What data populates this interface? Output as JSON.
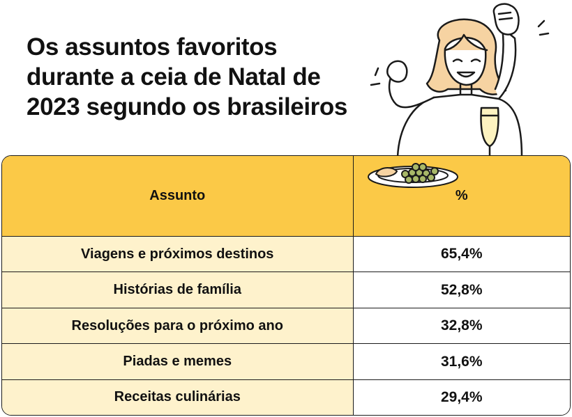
{
  "title_lines": [
    "Os assuntos favoritos",
    "durante a ceia de Natal de",
    "2023 segundo os brasileiros"
  ],
  "colors": {
    "header": "#fbc947",
    "label_cells": "#fef2cc",
    "value_cells": "#ffffff",
    "border": "#1a1a1a"
  },
  "illustration": {
    "icon": "woman-celebrating-with-champagne-icon",
    "plate_icon": "plate-with-grapes-icon"
  },
  "chart_data": {
    "type": "table",
    "title": "Os assuntos favoritos durante a ceia de Natal de 2023 segundo os brasileiros",
    "columns": [
      "Assunto",
      "%"
    ],
    "rows": [
      {
        "label": "Viagens e próximos destinos",
        "value": "65,4%"
      },
      {
        "label": "Histórias de família",
        "value": "52,8%"
      },
      {
        "label": "Resoluções para o próximo ano",
        "value": "32,8%"
      },
      {
        "label": "Piadas e memes",
        "value": "31,6%"
      },
      {
        "label": "Receitas culinárias",
        "value": "29,4%"
      }
    ]
  }
}
